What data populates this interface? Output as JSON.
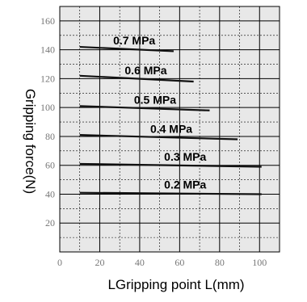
{
  "chart_data": {
    "type": "line",
    "title": "",
    "xlabel": "LGripping point L(mm)",
    "ylabel": "Gripping force(N)",
    "xlim": [
      0,
      110
    ],
    "ylim": [
      0,
      170
    ],
    "xticks": [
      0,
      20,
      40,
      60,
      80,
      100
    ],
    "yticks": [
      20,
      40,
      60,
      80,
      100,
      120,
      140,
      160
    ],
    "grid": true,
    "legend": "inline labels",
    "series": [
      {
        "name": "0.7 MPa",
        "x": [
          10,
          57
        ],
        "y": [
          142,
          139
        ]
      },
      {
        "name": "0.6 MPa",
        "x": [
          10,
          67
        ],
        "y": [
          122,
          118
        ]
      },
      {
        "name": "0.5 MPa",
        "x": [
          10,
          75
        ],
        "y": [
          101,
          98
        ]
      },
      {
        "name": "0.4 MPa",
        "x": [
          10,
          89
        ],
        "y": [
          81,
          78
        ]
      },
      {
        "name": "0.3 MPa",
        "x": [
          10,
          101
        ],
        "y": [
          61,
          59
        ]
      },
      {
        "name": "0.2 MPa",
        "x": [
          10,
          101
        ],
        "y": [
          41,
          40
        ]
      }
    ]
  },
  "colors": {
    "plot_background": "#e8e8e8",
    "grid": "#000000",
    "line": "#111111"
  }
}
